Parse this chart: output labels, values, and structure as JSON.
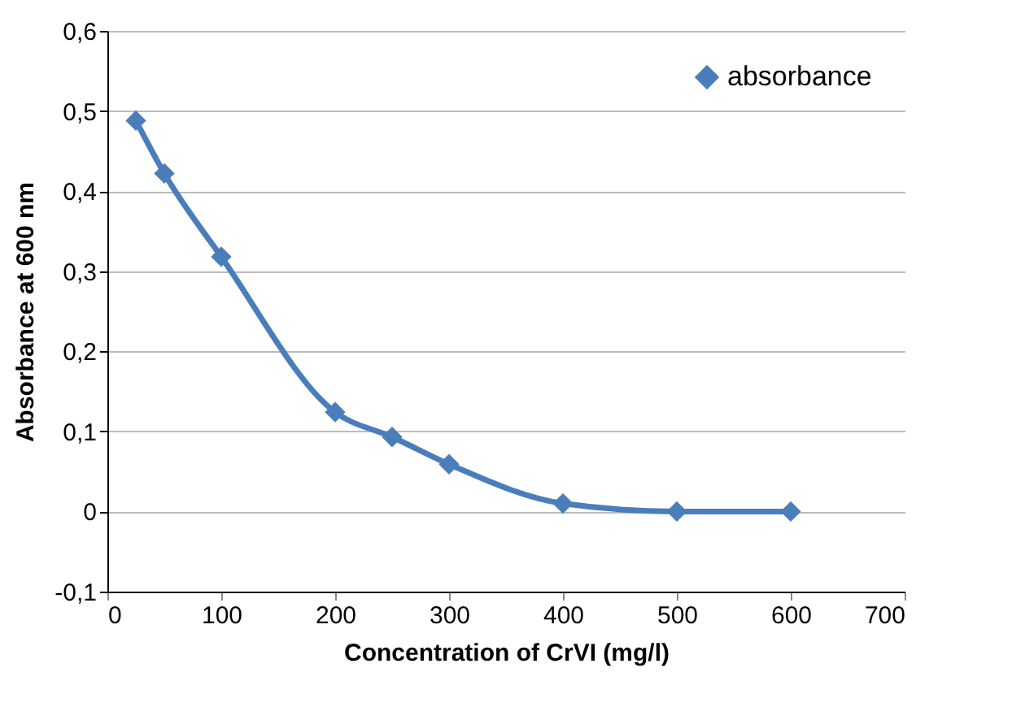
{
  "chart_data": {
    "type": "line",
    "xlabel": "Concentration of CrVI (mg/l)",
    "ylabel": "Absorbance at 600 nm",
    "x": [
      25,
      50,
      100,
      200,
      250,
      300,
      400,
      500,
      600
    ],
    "series": [
      {
        "name": "absorbance",
        "color": "#4a7ebb",
        "values": [
          0.488,
          0.422,
          0.318,
          0.124,
          0.093,
          0.059,
          0.01,
          0,
          0
        ]
      }
    ],
    "xlim": [
      0,
      700
    ],
    "xticks": [
      0,
      100,
      200,
      300,
      400,
      500,
      600,
      700
    ],
    "ylim": [
      -0.1,
      0.6
    ],
    "yticks": [
      {
        "value": -0.1,
        "label": "-0,1"
      },
      0,
      {
        "value": 0.1,
        "label": "0,1"
      },
      {
        "value": 0.2,
        "label": "0,2"
      },
      {
        "value": 0.3,
        "label": "0,3"
      },
      {
        "value": 0.4,
        "label": "0,4"
      },
      {
        "value": 0.5,
        "label": "0,5"
      },
      {
        "value": 0.6,
        "label": "0,6"
      }
    ],
    "grid": "y",
    "legend": "top right",
    "marker": "diamond",
    "line_style": "solid"
  }
}
